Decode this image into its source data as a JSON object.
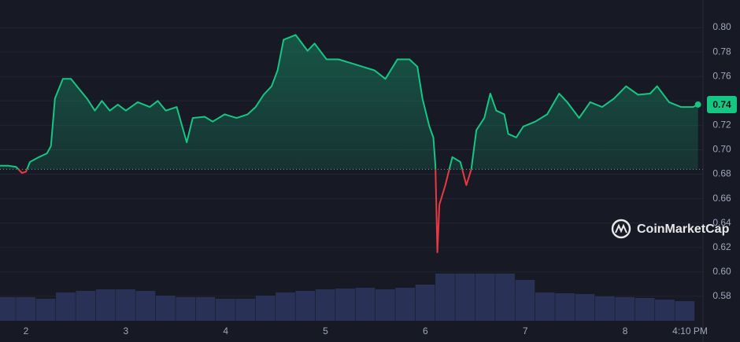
{
  "chart_data": {
    "type": "line",
    "x": [
      1.74,
      1.82,
      1.9,
      1.96,
      2.0,
      2.04,
      2.13,
      2.21,
      2.25,
      2.29,
      2.37,
      2.45,
      2.53,
      2.61,
      2.69,
      2.76,
      2.84,
      2.92,
      3.0,
      3.12,
      3.24,
      3.32,
      3.4,
      3.51,
      3.61,
      3.67,
      3.79,
      3.87,
      3.99,
      4.11,
      4.22,
      4.3,
      4.38,
      4.46,
      4.52,
      4.58,
      4.7,
      4.82,
      4.89,
      5.01,
      5.13,
      5.25,
      5.37,
      5.49,
      5.6,
      5.72,
      5.84,
      5.92,
      5.97,
      6.04,
      6.08,
      6.1,
      6.12,
      6.14,
      6.2,
      6.27,
      6.35,
      6.41,
      6.46,
      6.51,
      6.59,
      6.65,
      6.71,
      6.79,
      6.83,
      6.91,
      6.98,
      7.1,
      7.22,
      7.34,
      7.42,
      7.54,
      7.65,
      7.77,
      7.89,
      8.01,
      8.13,
      8.25,
      8.32,
      8.44,
      8.56,
      8.68,
      8.73
    ],
    "values": [
      0.687,
      0.687,
      0.686,
      0.681,
      0.682,
      0.69,
      0.694,
      0.697,
      0.703,
      0.742,
      0.758,
      0.758,
      0.75,
      0.742,
      0.732,
      0.74,
      0.732,
      0.737,
      0.732,
      0.739,
      0.735,
      0.74,
      0.732,
      0.735,
      0.706,
      0.726,
      0.727,
      0.723,
      0.729,
      0.726,
      0.729,
      0.735,
      0.745,
      0.752,
      0.765,
      0.79,
      0.794,
      0.781,
      0.787,
      0.774,
      0.774,
      0.771,
      0.768,
      0.765,
      0.758,
      0.774,
      0.774,
      0.768,
      0.742,
      0.719,
      0.71,
      0.687,
      0.616,
      0.655,
      0.671,
      0.694,
      0.69,
      0.671,
      0.684,
      0.716,
      0.726,
      0.746,
      0.732,
      0.729,
      0.713,
      0.71,
      0.719,
      0.723,
      0.729,
      0.746,
      0.739,
      0.726,
      0.739,
      0.735,
      0.742,
      0.752,
      0.745,
      0.746,
      0.752,
      0.739,
      0.735,
      0.735,
      0.737
    ],
    "color": "#16c784",
    "down_color": "#ea3943",
    "baseline": 0.684,
    "current_price": 0.737,
    "current_price_label": "0.74",
    "xlim": [
      1.74,
      8.78
    ],
    "xticks": [
      2,
      3,
      4,
      5,
      6,
      7,
      8,
      {
        "value": 8.65,
        "label": "4:10 PM"
      }
    ],
    "ylim": [
      0.56,
      0.82
    ],
    "yticks": [
      0.58,
      {
        "value": 0.6,
        "label": "0.60"
      },
      0.62,
      0.64,
      0.66,
      0.68,
      {
        "value": 0.7,
        "label": "0.70"
      },
      0.72,
      0.74,
      0.76,
      0.78,
      {
        "value": 0.8,
        "label": "0.80"
      }
    ],
    "grid": true,
    "volume": {
      "x": [
        1.8,
        2.0,
        2.2,
        2.4,
        2.6,
        2.8,
        3.0,
        3.2,
        3.4,
        3.6,
        3.8,
        4.0,
        4.2,
        4.4,
        4.6,
        4.8,
        5.0,
        5.2,
        5.4,
        5.6,
        5.8,
        6.0,
        6.2,
        6.4,
        6.6,
        6.8,
        7.0,
        7.2,
        7.4,
        7.6,
        7.8,
        8.0,
        8.2,
        8.4,
        8.6
      ],
      "values": [
        30,
        30,
        28,
        36,
        38,
        40,
        40,
        38,
        32,
        30,
        30,
        28,
        28,
        32,
        36,
        38,
        40,
        41,
        42,
        40,
        42,
        46,
        60,
        60,
        60,
        60,
        52,
        36,
        35,
        34,
        31,
        30,
        29,
        27,
        25
      ],
      "color": "#2a3157",
      "ylim": [
        0,
        100
      ]
    },
    "watermark": "CoinMarketCap"
  }
}
